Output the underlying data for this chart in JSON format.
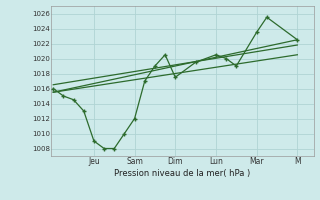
{
  "xlabel": "Pression niveau de la mer( hPa )",
  "bg_color": "#ceeaea",
  "grid_color": "#b0d4d4",
  "line_color": "#2d6b2d",
  "ylim": [
    1007,
    1027
  ],
  "yticks": [
    1008,
    1010,
    1012,
    1014,
    1016,
    1018,
    1020,
    1022,
    1024,
    1026
  ],
  "day_labels": [
    "Jeu",
    "Sam",
    "Dim",
    "Lun",
    "Mar",
    "M"
  ],
  "day_positions": [
    2,
    4,
    6,
    8,
    10,
    12
  ],
  "xlim": [
    -0.1,
    12.8
  ],
  "main_series_x": [
    0,
    0.5,
    1.0,
    1.5,
    2.0,
    2.5,
    3.0,
    3.5,
    4.0,
    4.5,
    5.0,
    5.5,
    6.0,
    7.0,
    8.0,
    8.5,
    9.0,
    10.0,
    10.5,
    12.0
  ],
  "main_series_y": [
    1016,
    1015,
    1014.5,
    1013,
    1009,
    1008,
    1008,
    1010,
    1012,
    1017,
    1019,
    1020.5,
    1017.5,
    1019.5,
    1020.5,
    1020,
    1019,
    1023.5,
    1025.5,
    1022.5
  ],
  "trend1_x": [
    0,
    12
  ],
  "trend1_y": [
    1015.5,
    1022.5
  ],
  "trend2_x": [
    0,
    12
  ],
  "trend2_y": [
    1015.5,
    1020.5
  ],
  "trend3_x": [
    0,
    12
  ],
  "trend3_y": [
    1016.5,
    1021.8
  ]
}
